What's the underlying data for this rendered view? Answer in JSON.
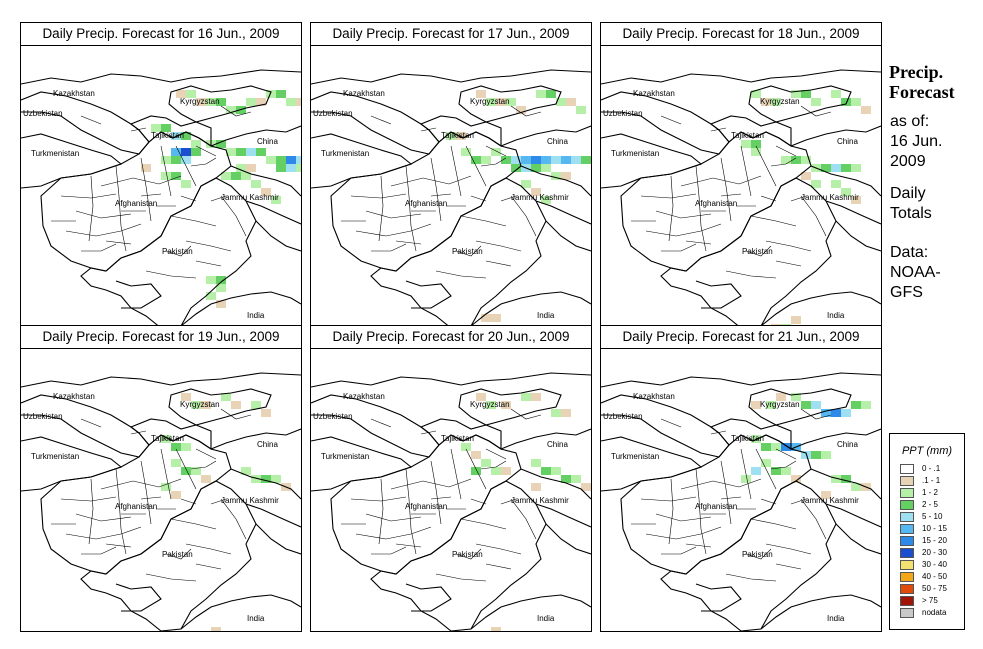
{
  "panels": [
    {
      "title": "Daily Precip. Forecast for  16 Jun., 2009",
      "cells": [
        [
          155,
          44,
          "1"
        ],
        [
          165,
          44,
          "2"
        ],
        [
          175,
          52,
          "1"
        ],
        [
          185,
          52,
          "2"
        ],
        [
          195,
          52,
          "3"
        ],
        [
          205,
          60,
          "2"
        ],
        [
          215,
          60,
          "3"
        ],
        [
          225,
          52,
          "2"
        ],
        [
          235,
          52,
          "1"
        ],
        [
          245,
          44,
          "2"
        ],
        [
          255,
          44,
          "3"
        ],
        [
          265,
          52,
          "2"
        ],
        [
          275,
          52,
          "1"
        ],
        [
          130,
          78,
          "2"
        ],
        [
          140,
          78,
          "3"
        ],
        [
          150,
          86,
          "4"
        ],
        [
          160,
          86,
          "3"
        ],
        [
          170,
          94,
          "2"
        ],
        [
          150,
          102,
          "5"
        ],
        [
          160,
          102,
          "7"
        ],
        [
          170,
          102,
          "3"
        ],
        [
          160,
          110,
          "4"
        ],
        [
          150,
          110,
          "3"
        ],
        [
          140,
          110,
          "2"
        ],
        [
          185,
          94,
          "2"
        ],
        [
          195,
          94,
          "3"
        ],
        [
          205,
          102,
          "2"
        ],
        [
          215,
          102,
          "3"
        ],
        [
          225,
          102,
          "4"
        ],
        [
          235,
          102,
          "3"
        ],
        [
          245,
          110,
          "2"
        ],
        [
          255,
          110,
          "3"
        ],
        [
          265,
          110,
          "6"
        ],
        [
          275,
          110,
          "4"
        ],
        [
          285,
          110,
          "2"
        ],
        [
          255,
          118,
          "3"
        ],
        [
          265,
          118,
          "4"
        ],
        [
          275,
          118,
          "2"
        ],
        [
          215,
          118,
          "2"
        ],
        [
          225,
          118,
          "1"
        ],
        [
          200,
          126,
          "2"
        ],
        [
          210,
          126,
          "3"
        ],
        [
          220,
          126,
          "2"
        ],
        [
          230,
          134,
          "2"
        ],
        [
          240,
          142,
          "1"
        ],
        [
          250,
          150,
          "2"
        ],
        [
          140,
          126,
          "2"
        ],
        [
          150,
          126,
          "3"
        ],
        [
          160,
          134,
          "2"
        ],
        [
          120,
          118,
          "1"
        ],
        [
          185,
          230,
          "2"
        ],
        [
          195,
          230,
          "3"
        ],
        [
          195,
          238,
          "2"
        ],
        [
          185,
          246,
          "2"
        ],
        [
          195,
          254,
          "1"
        ]
      ]
    },
    {
      "title": "Daily Precip. Forecast for  17 Jun., 2009",
      "cells": [
        [
          165,
          44,
          "1"
        ],
        [
          175,
          52,
          "2"
        ],
        [
          185,
          52,
          "1"
        ],
        [
          195,
          52,
          "2"
        ],
        [
          205,
          60,
          "1"
        ],
        [
          225,
          44,
          "2"
        ],
        [
          235,
          44,
          "3"
        ],
        [
          245,
          52,
          "2"
        ],
        [
          255,
          52,
          "1"
        ],
        [
          265,
          60,
          "2"
        ],
        [
          135,
          86,
          "2"
        ],
        [
          145,
          86,
          "1"
        ],
        [
          150,
          102,
          "2"
        ],
        [
          160,
          110,
          "3"
        ],
        [
          170,
          110,
          "2"
        ],
        [
          180,
          102,
          "2"
        ],
        [
          190,
          110,
          "3"
        ],
        [
          200,
          110,
          "4"
        ],
        [
          210,
          110,
          "5"
        ],
        [
          220,
          110,
          "6"
        ],
        [
          230,
          110,
          "5"
        ],
        [
          240,
          110,
          "4"
        ],
        [
          250,
          110,
          "5"
        ],
        [
          260,
          110,
          "4"
        ],
        [
          270,
          110,
          "3"
        ],
        [
          280,
          110,
          "2"
        ],
        [
          200,
          118,
          "3"
        ],
        [
          210,
          118,
          "4"
        ],
        [
          220,
          118,
          "3"
        ],
        [
          230,
          118,
          "2"
        ],
        [
          240,
          126,
          "2"
        ],
        [
          250,
          126,
          "1"
        ],
        [
          210,
          134,
          "2"
        ],
        [
          220,
          142,
          "1"
        ],
        [
          230,
          150,
          "2"
        ],
        [
          170,
          268,
          "1"
        ],
        [
          180,
          268,
          "1"
        ]
      ]
    },
    {
      "title": "Daily Precip. Forecast for  18 Jun., 2009",
      "cells": [
        [
          150,
          44,
          "2"
        ],
        [
          160,
          52,
          "1"
        ],
        [
          170,
          52,
          "2"
        ],
        [
          190,
          44,
          "2"
        ],
        [
          200,
          44,
          "3"
        ],
        [
          210,
          52,
          "2"
        ],
        [
          230,
          44,
          "2"
        ],
        [
          240,
          52,
          "3"
        ],
        [
          250,
          52,
          "2"
        ],
        [
          260,
          60,
          "1"
        ],
        [
          140,
          94,
          "2"
        ],
        [
          150,
          94,
          "3"
        ],
        [
          150,
          102,
          "2"
        ],
        [
          180,
          110,
          "2"
        ],
        [
          190,
          110,
          "3"
        ],
        [
          200,
          110,
          "2"
        ],
        [
          210,
          118,
          "2"
        ],
        [
          220,
          118,
          "3"
        ],
        [
          230,
          118,
          "4"
        ],
        [
          240,
          118,
          "3"
        ],
        [
          250,
          118,
          "2"
        ],
        [
          200,
          126,
          "1"
        ],
        [
          210,
          134,
          "2"
        ],
        [
          230,
          134,
          "2"
        ],
        [
          240,
          142,
          "2"
        ],
        [
          250,
          150,
          "1"
        ],
        [
          170,
          278,
          "1"
        ],
        [
          180,
          278,
          "2"
        ],
        [
          190,
          270,
          "1"
        ]
      ]
    },
    {
      "title": "Daily Precip. Forecast for  19 Jun., 2009",
      "cells": [
        [
          160,
          44,
          "1"
        ],
        [
          170,
          52,
          "2"
        ],
        [
          180,
          52,
          "1"
        ],
        [
          200,
          44,
          "2"
        ],
        [
          210,
          52,
          "1"
        ],
        [
          230,
          52,
          "2"
        ],
        [
          240,
          60,
          "1"
        ],
        [
          140,
          86,
          "2"
        ],
        [
          150,
          94,
          "3"
        ],
        [
          160,
          94,
          "2"
        ],
        [
          150,
          110,
          "2"
        ],
        [
          160,
          118,
          "3"
        ],
        [
          170,
          118,
          "2"
        ],
        [
          180,
          126,
          "1"
        ],
        [
          220,
          118,
          "2"
        ],
        [
          230,
          126,
          "2"
        ],
        [
          240,
          126,
          "3"
        ],
        [
          250,
          126,
          "2"
        ],
        [
          260,
          134,
          "1"
        ],
        [
          140,
          134,
          "2"
        ],
        [
          150,
          142,
          "1"
        ],
        [
          190,
          278,
          "1"
        ]
      ]
    },
    {
      "title": "Daily Precip. Forecast for  20 Jun., 2009",
      "cells": [
        [
          165,
          44,
          "1"
        ],
        [
          175,
          52,
          "2"
        ],
        [
          190,
          52,
          "1"
        ],
        [
          210,
          44,
          "2"
        ],
        [
          220,
          44,
          "1"
        ],
        [
          240,
          60,
          "2"
        ],
        [
          250,
          60,
          "1"
        ],
        [
          150,
          94,
          "2"
        ],
        [
          160,
          102,
          "1"
        ],
        [
          160,
          118,
          "3"
        ],
        [
          170,
          110,
          "2"
        ],
        [
          180,
          118,
          "2"
        ],
        [
          190,
          118,
          "1"
        ],
        [
          220,
          110,
          "2"
        ],
        [
          230,
          118,
          "3"
        ],
        [
          240,
          118,
          "2"
        ],
        [
          250,
          126,
          "3"
        ],
        [
          260,
          126,
          "2"
        ],
        [
          270,
          134,
          "1"
        ],
        [
          220,
          134,
          "1"
        ],
        [
          180,
          278,
          "1"
        ]
      ]
    },
    {
      "title": "Daily Precip. Forecast for  21 Jun., 2009",
      "cells": [
        [
          150,
          52,
          "1"
        ],
        [
          165,
          52,
          "2"
        ],
        [
          175,
          44,
          "1"
        ],
        [
          190,
          44,
          "2"
        ],
        [
          200,
          52,
          "3"
        ],
        [
          210,
          52,
          "4"
        ],
        [
          220,
          60,
          "5"
        ],
        [
          230,
          60,
          "6"
        ],
        [
          240,
          60,
          "4"
        ],
        [
          250,
          52,
          "3"
        ],
        [
          260,
          52,
          "2"
        ],
        [
          150,
          86,
          "2"
        ],
        [
          160,
          94,
          "3"
        ],
        [
          170,
          94,
          "2"
        ],
        [
          180,
          94,
          "6"
        ],
        [
          190,
          94,
          "5"
        ],
        [
          200,
          102,
          "4"
        ],
        [
          210,
          102,
          "3"
        ],
        [
          220,
          102,
          "2"
        ],
        [
          160,
          110,
          "2"
        ],
        [
          170,
          118,
          "3"
        ],
        [
          180,
          118,
          "2"
        ],
        [
          190,
          126,
          "1"
        ],
        [
          140,
          126,
          "2"
        ],
        [
          150,
          118,
          "4"
        ],
        [
          230,
          126,
          "2"
        ],
        [
          240,
          126,
          "3"
        ],
        [
          250,
          134,
          "2"
        ],
        [
          260,
          134,
          "1"
        ],
        [
          220,
          142,
          "1"
        ]
      ]
    }
  ],
  "map_labels": [
    "Kazakhstan",
    "Uzbekistan",
    "Kyrgyzstan",
    "Tajikistan",
    "China",
    "Turkmenistan",
    "Afghanistan",
    "Jammu Kashmir",
    "Pakistan",
    "India"
  ],
  "sidebar": {
    "title_line1": "Precip.",
    "title_line2": "Forecast",
    "asof_line1": "as of:",
    "asof_line2": "16 Jun.",
    "asof_line3": "2009",
    "totals_line1": "Daily",
    "totals_line2": "Totals",
    "data_line1": "Data:",
    "data_line2": "NOAA-",
    "data_line3": "GFS"
  },
  "legend": {
    "title": "PPT (mm)",
    "items": [
      {
        "label": "0 - .1",
        "color": "#ffffff"
      },
      {
        "label": ".1 - 1",
        "color": "#e8d3b6"
      },
      {
        "label": "1 - 2",
        "color": "#b6f0a8"
      },
      {
        "label": "2 - 5",
        "color": "#64d064"
      },
      {
        "label": "5 - 10",
        "color": "#9ee0f2"
      },
      {
        "label": "10 - 15",
        "color": "#56b8f0"
      },
      {
        "label": "15 - 20",
        "color": "#2e8ae8"
      },
      {
        "label": "20 - 30",
        "color": "#1c4fd0"
      },
      {
        "label": "30 - 40",
        "color": "#f2e070"
      },
      {
        "label": "40 - 50",
        "color": "#f2a618"
      },
      {
        "label": "50 - 75",
        "color": "#e04a0a"
      },
      {
        "label": "> 75",
        "color": "#a0140a"
      },
      {
        "label": "nodata",
        "color": "#c8c8c8"
      }
    ]
  }
}
